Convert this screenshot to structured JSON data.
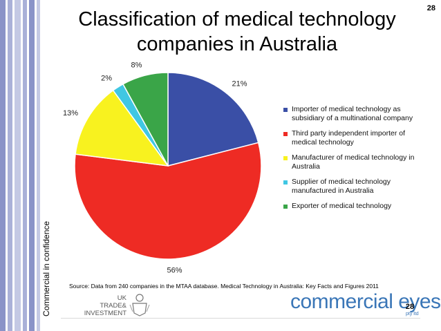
{
  "slide": {
    "title": "Classification of medical technology companies in Australia",
    "side_label": "Commercial in confidence",
    "corner_page": "28",
    "footer_page": "28",
    "source": "Source: Data from 240 companies in the MTAA database. Medical Technology in Australia: Key Facts and Figures 2011",
    "uk_logo": [
      "UK",
      "TRADE&",
      "INVESTMENT"
    ],
    "brand_name": "commercial eyes",
    "brand_sub": "pty ltd"
  },
  "chart_data": {
    "type": "pie",
    "slices": [
      {
        "name": "Importer of medical technology as subsidiary of a multinational company",
        "value": 21,
        "label": "21%",
        "color": "#3a4fa6"
      },
      {
        "name": "Third party independent importer of medical technology",
        "value": 56,
        "label": "56%",
        "color": "#ee2b24"
      },
      {
        "name": "Manufacturer of medical technology in Australia",
        "value": 13,
        "label": "13%",
        "color": "#f8f21f"
      },
      {
        "name": "Supplier of medical technology manufactured in Australia",
        "value": 2,
        "label": "2%",
        "color": "#40c7e3"
      },
      {
        "name": "Exporter of medical technology",
        "value": 8,
        "label": "8%",
        "color": "#3aa548"
      }
    ],
    "legend_position": "right"
  },
  "colors": {
    "stripes": [
      "#8a93c8",
      "#aab1d8",
      "#c4c9e4",
      "#aab1d8",
      "#8a93c8",
      "#c4c9e4"
    ],
    "brand": "#3a76b7"
  }
}
